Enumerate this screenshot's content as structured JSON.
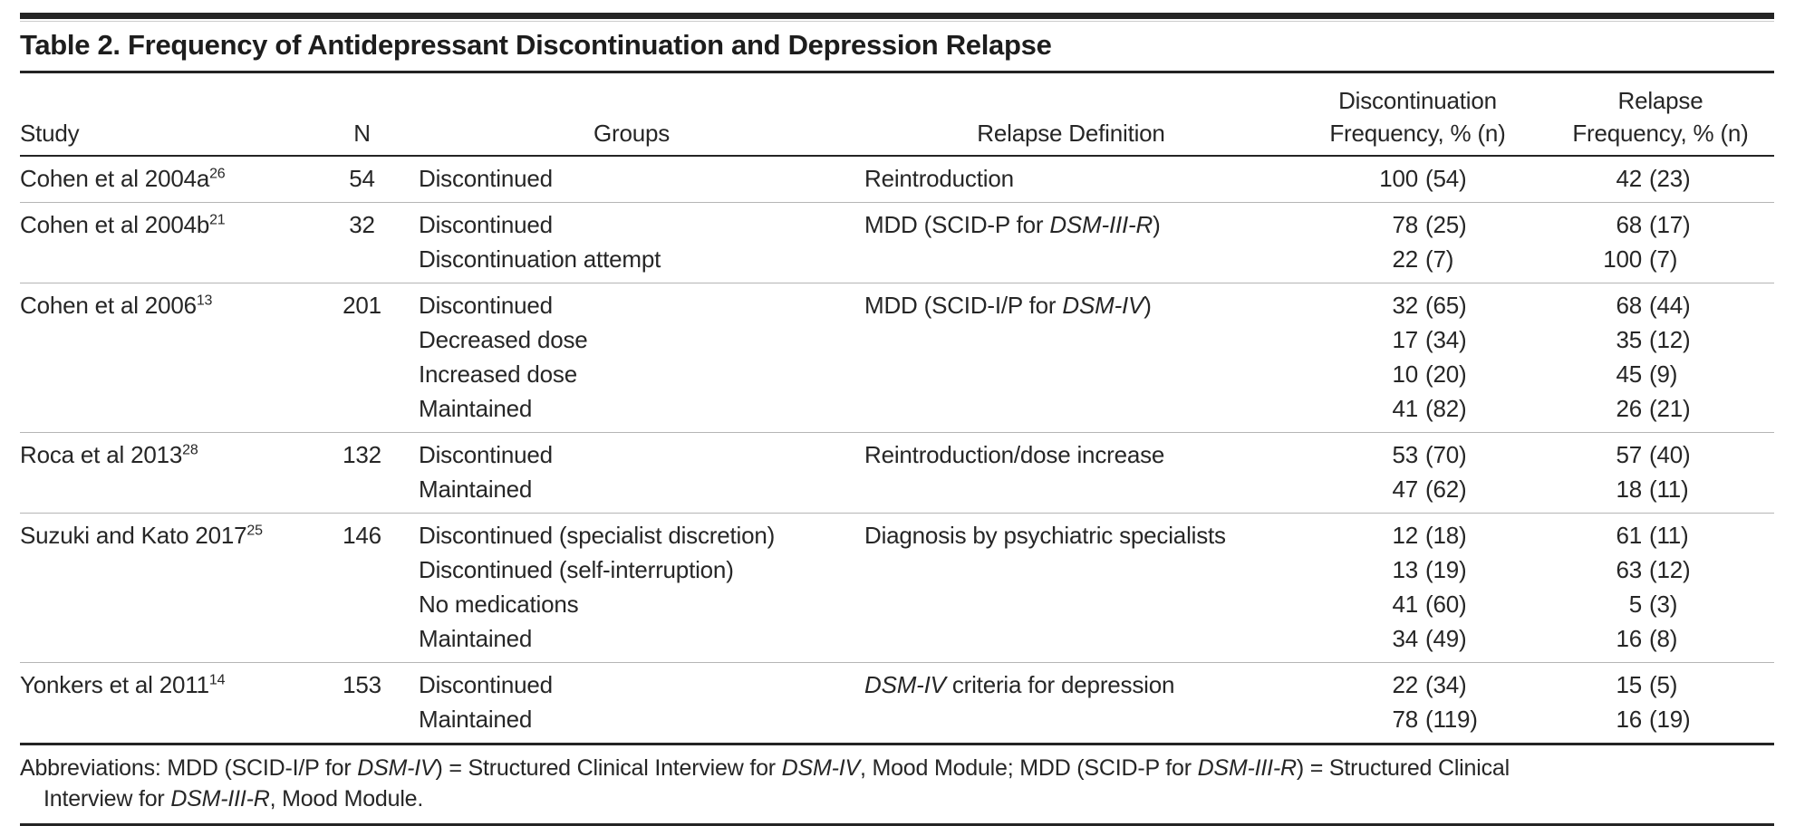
{
  "title": "Table 2. Frequency of Antidepressant Discontinuation and Depression Relapse",
  "colors": {
    "rule_dark": "#242424",
    "rule_light": "#b5b5b5",
    "text": "#262626"
  },
  "columns": {
    "study": "Study",
    "n": "N",
    "groups": "Groups",
    "relapse_definition": "Relapse Definition",
    "discontinuation_frequency": [
      "Discontinuation",
      "Frequency, % (n)"
    ],
    "relapse_frequency": [
      "Relapse",
      "Frequency, % (n)"
    ]
  },
  "rows": [
    {
      "study": "Cohen et al 2004a",
      "ref": "26",
      "n": "54",
      "groups": [
        "Discontinued"
      ],
      "relapse_definition": [
        {
          "t": "Reintroduction",
          "i": false
        }
      ],
      "discontinuation": [
        "100 (54)"
      ],
      "relapse": [
        "42 (23)"
      ]
    },
    {
      "study": "Cohen et al 2004b",
      "ref": "21",
      "n": "32",
      "groups": [
        "Discontinued",
        "Discontinuation attempt"
      ],
      "relapse_definition": [
        {
          "t": "MDD (SCID-P for ",
          "i": false
        },
        {
          "t": "DSM-III-R",
          "i": true
        },
        {
          "t": ")",
          "i": false
        }
      ],
      "discontinuation": [
        "78 (25)",
        "22 (7)"
      ],
      "relapse": [
        "68 (17)",
        "100 (7)"
      ]
    },
    {
      "study": "Cohen et al 2006",
      "ref": "13",
      "n": "201",
      "groups": [
        "Discontinued",
        "Decreased dose",
        "Increased dose",
        "Maintained"
      ],
      "relapse_definition": [
        {
          "t": "MDD (SCID-I/P for ",
          "i": false
        },
        {
          "t": "DSM-IV",
          "i": true
        },
        {
          "t": ")",
          "i": false
        }
      ],
      "discontinuation": [
        "32 (65)",
        "17 (34)",
        "10 (20)",
        "41 (82)"
      ],
      "relapse": [
        "68 (44)",
        "35 (12)",
        "45 (9)",
        "26 (21)"
      ]
    },
    {
      "study": "Roca et al 2013",
      "ref": "28",
      "n": "132",
      "groups": [
        "Discontinued",
        "Maintained"
      ],
      "relapse_definition": [
        {
          "t": "Reintroduction/dose increase",
          "i": false
        }
      ],
      "discontinuation": [
        "53 (70)",
        "47 (62)"
      ],
      "relapse": [
        "57 (40)",
        "18 (11)"
      ]
    },
    {
      "study": "Suzuki and Kato 2017",
      "ref": "25",
      "n": "146",
      "groups": [
        "Discontinued (specialist discretion)",
        "Discontinued (self-interruption)",
        "No medications",
        "Maintained"
      ],
      "relapse_definition": [
        {
          "t": "Diagnosis by psychiatric specialists",
          "i": false
        }
      ],
      "discontinuation": [
        "12 (18)",
        "13 (19)",
        "41 (60)",
        "34 (49)"
      ],
      "relapse": [
        "61 (11)",
        "63 (12)",
        "5 (3)",
        "16 (8)"
      ]
    },
    {
      "study": "Yonkers et al 2011",
      "ref": "14",
      "n": "153",
      "groups": [
        "Discontinued",
        "Maintained"
      ],
      "relapse_definition": [
        {
          "t": "DSM-IV",
          "i": true
        },
        {
          "t": " criteria for depression",
          "i": false
        }
      ],
      "discontinuation": [
        "22 (34)",
        "78 (119)"
      ],
      "relapse": [
        "15 (5)",
        "16 (19)"
      ]
    }
  ],
  "footnote": {
    "lines": [
      [
        {
          "t": "Abbreviations: MDD (SCID-I/P for ",
          "i": false
        },
        {
          "t": "DSM-IV",
          "i": true
        },
        {
          "t": ") = Structured Clinical Interview for ",
          "i": false
        },
        {
          "t": "DSM-IV",
          "i": true
        },
        {
          "t": ", Mood Module; MDD (SCID-P for ",
          "i": false
        },
        {
          "t": "DSM-III-R",
          "i": true
        },
        {
          "t": ") = Structured Clinical",
          "i": false
        }
      ],
      [
        {
          "t": "Interview for ",
          "i": false
        },
        {
          "t": "DSM-III-R",
          "i": true
        },
        {
          "t": ", Mood Module.",
          "i": false
        }
      ]
    ]
  }
}
